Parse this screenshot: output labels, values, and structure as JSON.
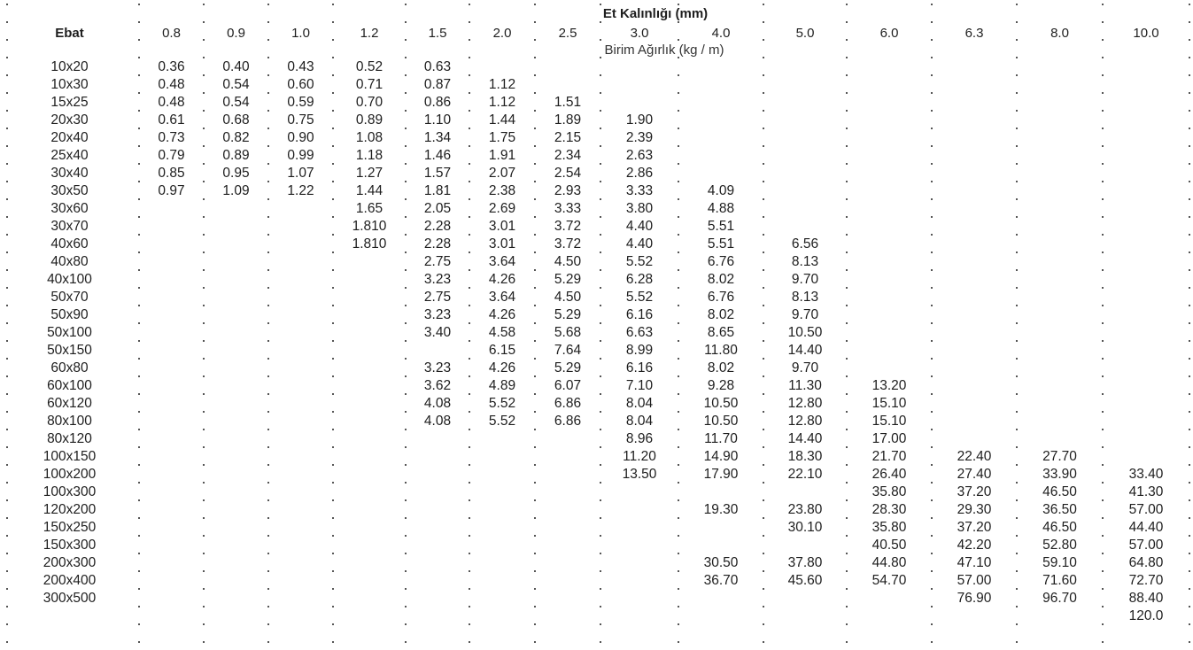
{
  "title": "Et Kalınlığı (mm)",
  "subtitle": "Birim Ağırlık (kg / m)",
  "columns": [
    "Ebat",
    "0.8",
    "0.9",
    "1.0",
    "1.2",
    "1.5",
    "2.0",
    "2.5",
    "3.0",
    "4.0",
    "5.0",
    "6.0",
    "6.3",
    "8.0",
    "10.0"
  ],
  "rows": [
    {
      "cells": [
        "10x20",
        "0.36",
        "0.40",
        "0.43",
        "0.52",
        "0.63",
        "",
        "",
        "",
        "",
        "",
        "",
        "",
        "",
        ""
      ]
    },
    {
      "cells": [
        "10x30",
        "0.48",
        "0.54",
        "0.60",
        "0.71",
        "0.87",
        "1.12",
        "",
        "",
        "",
        "",
        "",
        "",
        "",
        ""
      ]
    },
    {
      "cells": [
        "15x25",
        "0.48",
        "0.54",
        "0.59",
        "0.70",
        "0.86",
        "1.12",
        "1.51",
        "",
        "",
        "",
        "",
        "",
        "",
        ""
      ]
    },
    {
      "cells": [
        "20x30",
        "0.61",
        "0.68",
        "0.75",
        "0.89",
        "1.10",
        "1.44",
        "1.89",
        "1.90",
        "",
        "",
        "",
        "",
        "",
        ""
      ]
    },
    {
      "cells": [
        "20x40",
        "0.73",
        "0.82",
        "0.90",
        "1.08",
        "1.34",
        "1.75",
        "2.15",
        "2.39",
        "",
        "",
        "",
        "",
        "",
        ""
      ]
    },
    {
      "cells": [
        "25x40",
        "0.79",
        "0.89",
        "0.99",
        "1.18",
        "1.46",
        "1.91",
        "2.34",
        "2.63",
        "",
        "",
        "",
        "",
        "",
        ""
      ]
    },
    {
      "cells": [
        "30x40",
        "0.85",
        "0.95",
        "1.07",
        "1.27",
        "1.57",
        "2.07",
        "2.54",
        "2.86",
        "",
        "",
        "",
        "",
        "",
        ""
      ]
    },
    {
      "cells": [
        "30x50",
        "0.97",
        "1.09",
        "1.22",
        "1.44",
        "1.81",
        "2.38",
        "2.93",
        "3.33",
        "4.09",
        "",
        "",
        "",
        "",
        ""
      ]
    },
    {
      "cells": [
        "30x60",
        "",
        "",
        "",
        "1.65",
        "2.05",
        "2.69",
        "3.33",
        "3.80",
        "4.88",
        "",
        "",
        "",
        "",
        ""
      ]
    },
    {
      "cells": [
        "30x70",
        "",
        "",
        "",
        "1.810",
        "2.28",
        "3.01",
        "3.72",
        "4.40",
        "5.51",
        "",
        "",
        "",
        "",
        ""
      ]
    },
    {
      "cells": [
        "40x60",
        "",
        "",
        "",
        "1.810",
        "2.28",
        "3.01",
        "3.72",
        "4.40",
        "5.51",
        "6.56",
        "",
        "",
        "",
        ""
      ]
    },
    {
      "cells": [
        "40x80",
        "",
        "",
        "",
        "",
        "2.75",
        "3.64",
        "4.50",
        "5.52",
        "6.76",
        "8.13",
        "",
        "",
        "",
        ""
      ]
    },
    {
      "cells": [
        "40x100",
        "",
        "",
        "",
        "",
        "3.23",
        "4.26",
        "5.29",
        "6.28",
        "8.02",
        "9.70",
        "",
        "",
        "",
        ""
      ]
    },
    {
      "cells": [
        "50x70",
        "",
        "",
        "",
        "",
        "2.75",
        "3.64",
        "4.50",
        "5.52",
        "6.76",
        "8.13",
        "",
        "",
        "",
        ""
      ]
    },
    {
      "cells": [
        "50x90",
        "",
        "",
        "",
        "",
        "3.23",
        "4.26",
        "5.29",
        "6.16",
        "8.02",
        "9.70",
        "",
        "",
        "",
        ""
      ]
    },
    {
      "cells": [
        "50x100",
        "",
        "",
        "",
        "",
        "3.40",
        "4.58",
        "5.68",
        "6.63",
        "8.65",
        "10.50",
        "",
        "",
        "",
        ""
      ]
    },
    {
      "cells": [
        "50x150",
        "",
        "",
        "",
        "",
        "",
        "6.15",
        "7.64",
        "8.99",
        "11.80",
        "14.40",
        "",
        "",
        "",
        ""
      ]
    },
    {
      "cells": [
        "60x80",
        "",
        "",
        "",
        "",
        "3.23",
        "4.26",
        "5.29",
        "6.16",
        "8.02",
        "9.70",
        "",
        "",
        "",
        ""
      ]
    },
    {
      "cells": [
        "60x100",
        "",
        "",
        "",
        "",
        "3.62",
        "4.89",
        "6.07",
        "7.10",
        "9.28",
        "11.30",
        "13.20",
        "",
        "",
        ""
      ]
    },
    {
      "cells": [
        "60x120",
        "",
        "",
        "",
        "",
        "4.08",
        "5.52",
        "6.86",
        "8.04",
        "10.50",
        "12.80",
        "15.10",
        "",
        "",
        ""
      ]
    },
    {
      "cells": [
        "80x100",
        "",
        "",
        "",
        "",
        "4.08",
        "5.52",
        "6.86",
        "8.04",
        "10.50",
        "12.80",
        "15.10",
        "",
        "",
        ""
      ]
    },
    {
      "cells": [
        "80x120",
        "",
        "",
        "",
        "",
        "",
        "",
        "",
        "8.96",
        "11.70",
        "14.40",
        "17.00",
        "",
        "",
        ""
      ]
    },
    {
      "cells": [
        "100x150",
        "",
        "",
        "",
        "",
        "",
        "",
        "",
        "11.20",
        "14.90",
        "18.30",
        "21.70",
        "22.40",
        "27.70",
        ""
      ]
    },
    {
      "cells": [
        "100x200",
        "",
        "",
        "",
        "",
        "",
        "",
        "",
        "13.50",
        "17.90",
        "22.10",
        "26.40",
        "27.40",
        "33.90",
        "33.40"
      ]
    },
    {
      "cells": [
        "100x300",
        "",
        "",
        "",
        "",
        "",
        "",
        "",
        "",
        "",
        "",
        "35.80",
        "37.20",
        "46.50",
        "41.30"
      ]
    },
    {
      "cells": [
        "120x200",
        "",
        "",
        "",
        "",
        "",
        "",
        "",
        "",
        "19.30",
        "23.80",
        "28.30",
        "29.30",
        "36.50",
        "57.00"
      ]
    },
    {
      "cells": [
        "150x250",
        "",
        "",
        "",
        "",
        "",
        "",
        "",
        "",
        "",
        "30.10",
        "35.80",
        "37.20",
        "46.50",
        "44.40"
      ]
    },
    {
      "cells": [
        "150x300",
        "",
        "",
        "",
        "",
        "",
        "",
        "",
        "",
        "",
        "",
        "40.50",
        "42.20",
        "52.80",
        "57.00"
      ]
    },
    {
      "cells": [
        "200x300",
        "",
        "",
        "",
        "",
        "",
        "",
        "",
        "",
        "30.50",
        "37.80",
        "44.80",
        "47.10",
        "59.10",
        "64.80"
      ]
    },
    {
      "cells": [
        "200x400",
        "",
        "",
        "",
        "",
        "",
        "",
        "",
        "",
        "36.70",
        "45.60",
        "54.70",
        "57.00",
        "71.60",
        "72.70"
      ]
    },
    {
      "cells": [
        "300x500",
        "",
        "",
        "",
        "",
        "",
        "",
        "",
        "",
        "",
        "",
        "",
        "76.90",
        "96.70",
        "88.40"
      ]
    },
    {
      "cells": [
        "",
        "",
        "",
        "",
        "",
        "",
        "",
        "",
        "",
        "",
        "",
        "",
        "",
        "",
        "120.0"
      ]
    }
  ]
}
